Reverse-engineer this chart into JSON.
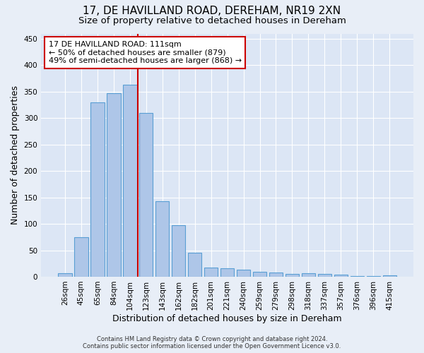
{
  "title": "17, DE HAVILLAND ROAD, DEREHAM, NR19 2XN",
  "subtitle": "Size of property relative to detached houses in Dereham",
  "xlabel": "Distribution of detached houses by size in Dereham",
  "ylabel": "Number of detached properties",
  "footer_line1": "Contains HM Land Registry data © Crown copyright and database right 2024.",
  "footer_line2": "Contains public sector information licensed under the Open Government Licence v3.0.",
  "bar_labels": [
    "26sqm",
    "45sqm",
    "65sqm",
    "84sqm",
    "104sqm",
    "123sqm",
    "143sqm",
    "162sqm",
    "182sqm",
    "201sqm",
    "221sqm",
    "240sqm",
    "259sqm",
    "279sqm",
    "298sqm",
    "318sqm",
    "337sqm",
    "357sqm",
    "376sqm",
    "396sqm",
    "415sqm"
  ],
  "bar_values": [
    7,
    75,
    330,
    347,
    363,
    310,
    143,
    98,
    46,
    17,
    16,
    13,
    9,
    8,
    5,
    6,
    5,
    4,
    1,
    1,
    3
  ],
  "bar_color": "#aec6e8",
  "bar_edgecolor": "#5a9fd4",
  "vline_x": 4.5,
  "vline_color": "#cc0000",
  "annotation_text": "17 DE HAVILLAND ROAD: 111sqm\n← 50% of detached houses are smaller (879)\n49% of semi-detached houses are larger (868) →",
  "annotation_box_color": "white",
  "annotation_box_edgecolor": "#cc0000",
  "ylim": [
    0,
    460
  ],
  "yticks": [
    0,
    50,
    100,
    150,
    200,
    250,
    300,
    350,
    400,
    450
  ],
  "background_color": "#e8eef7",
  "plot_background_color": "#dce6f5",
  "grid_color": "white",
  "title_fontsize": 11,
  "subtitle_fontsize": 9.5,
  "tick_fontsize": 7.5,
  "ylabel_fontsize": 9,
  "xlabel_fontsize": 9,
  "annotation_fontsize": 8,
  "footer_fontsize": 6
}
